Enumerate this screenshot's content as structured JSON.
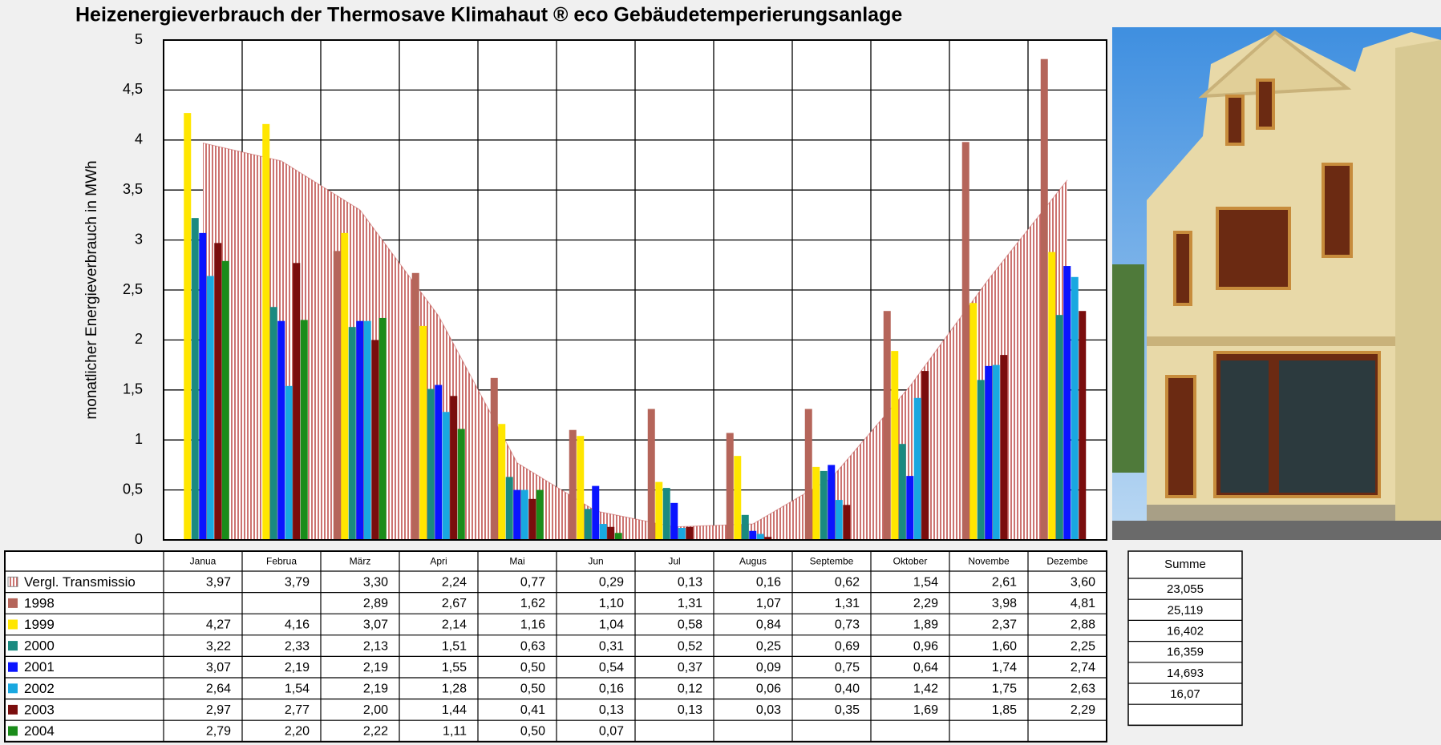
{
  "chart_data": {
    "type": "bar",
    "title": "Heizenergieverbrauch der Thermosave Klimahaut ® eco Gebäudetemperierungsanlage",
    "y_label": "monatlicher Energieverbrauch in MWh",
    "categories": [
      "Janua",
      "Februa",
      "März",
      "Apri",
      "Mai",
      "Jun",
      "Jul",
      "Augus",
      "Septembe",
      "Oktober",
      "Novembe",
      "Dezembe"
    ],
    "ylim": [
      0,
      5
    ],
    "yticks": [
      0,
      {
        "value": 0.5,
        "label": "0,5"
      },
      1,
      {
        "value": 1.5,
        "label": "1,5"
      },
      2,
      {
        "value": 2.5,
        "label": "2,5"
      },
      3,
      {
        "value": 3.5,
        "label": "3,5"
      },
      4,
      {
        "value": 4.5,
        "label": "4,5"
      },
      5
    ],
    "grid": true,
    "series": [
      {
        "name": "Vergl. Transmissio",
        "type": "area",
        "color": "#c0504d",
        "values": [
          3.97,
          3.79,
          3.3,
          2.24,
          0.77,
          0.29,
          0.13,
          0.16,
          0.62,
          1.54,
          2.61,
          3.6
        ],
        "value_labels": [
          "3,97",
          "3,79",
          "3,30",
          "2,24",
          "0,77",
          "0,29",
          "0,13",
          "0,16",
          "0,62",
          "1,54",
          "2,61",
          "3,60"
        ]
      },
      {
        "name": "1998",
        "color": "#b5655a",
        "values": [
          null,
          null,
          2.89,
          2.67,
          1.62,
          1.1,
          1.31,
          1.07,
          1.31,
          2.29,
          3.98,
          4.81
        ],
        "value_labels": [
          null,
          null,
          "2,89",
          "2,67",
          "1,62",
          "1,10",
          "1,31",
          "1,07",
          "1,31",
          "2,29",
          "3,98",
          "4,81"
        ]
      },
      {
        "name": "1999",
        "color": "#ffe600",
        "values": [
          4.27,
          4.16,
          3.07,
          2.14,
          1.16,
          1.04,
          0.58,
          0.84,
          0.73,
          1.89,
          2.37,
          2.88
        ],
        "value_labels": [
          "4,27",
          "4,16",
          "3,07",
          "2,14",
          "1,16",
          "1,04",
          "0,58",
          "0,84",
          "0,73",
          "1,89",
          "2,37",
          "2,88"
        ]
      },
      {
        "name": "2000",
        "color": "#1a8a80",
        "values": [
          3.22,
          2.33,
          2.13,
          1.51,
          0.63,
          0.31,
          0.52,
          0.25,
          0.69,
          0.96,
          1.6,
          2.25
        ],
        "value_labels": [
          "3,22",
          "2,33",
          "2,13",
          "1,51",
          "0,63",
          "0,31",
          "0,52",
          "0,25",
          "0,69",
          "0,96",
          "1,60",
          "2,25"
        ]
      },
      {
        "name": "2001",
        "color": "#0a14ff",
        "values": [
          3.07,
          2.19,
          2.19,
          1.55,
          0.5,
          0.54,
          0.37,
          0.09,
          0.75,
          0.64,
          1.74,
          2.74
        ],
        "value_labels": [
          "3,07",
          "2,19",
          "2,19",
          "1,55",
          "0,50",
          "0,54",
          "0,37",
          "0,09",
          "0,75",
          "0,64",
          "1,74",
          "2,74"
        ]
      },
      {
        "name": "2002",
        "color": "#19a8e0",
        "values": [
          2.64,
          1.54,
          2.19,
          1.28,
          0.5,
          0.16,
          0.12,
          0.06,
          0.4,
          1.42,
          1.75,
          2.63
        ],
        "value_labels": [
          "2,64",
          "1,54",
          "2,19",
          "1,28",
          "0,50",
          "0,16",
          "0,12",
          "0,06",
          "0,40",
          "1,42",
          "1,75",
          "2,63"
        ]
      },
      {
        "name": "2003",
        "color": "#7a0d0d",
        "values": [
          2.97,
          2.77,
          2.0,
          1.44,
          0.41,
          0.13,
          0.13,
          0.03,
          0.35,
          1.69,
          1.85,
          2.29
        ],
        "value_labels": [
          "2,97",
          "2,77",
          "2,00",
          "1,44",
          "0,41",
          "0,13",
          "0,13",
          "0,03",
          "0,35",
          "1,69",
          "1,85",
          "2,29"
        ]
      },
      {
        "name": "2004",
        "color": "#1a8c1a",
        "values": [
          2.79,
          2.2,
          2.22,
          1.11,
          0.5,
          0.07,
          null,
          null,
          null,
          null,
          null,
          null
        ],
        "value_labels": [
          "2,79",
          "2,20",
          "2,22",
          "1,11",
          "0,50",
          "0,07",
          null,
          null,
          null,
          null,
          null,
          null
        ]
      }
    ],
    "summe": {
      "title": "Summe",
      "values": [
        23.055,
        25.119,
        16.402,
        16.359,
        14.693,
        16.07,
        null
      ],
      "value_labels": [
        "23,055",
        "25,119",
        "16,402",
        "16,359",
        "14,693",
        "16,07",
        null
      ]
    }
  }
}
